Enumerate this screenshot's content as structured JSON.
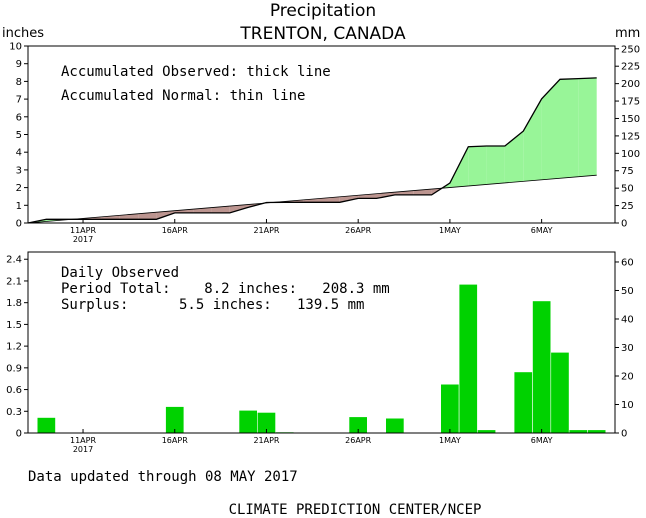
{
  "header": {
    "title": "Precipitation",
    "station": "TRENTON, CANADA",
    "unit_left": "inches",
    "unit_right": "mm"
  },
  "x_ticks": [
    {
      "label": "11APR",
      "sub": "2017",
      "day": 3
    },
    {
      "label": "16APR",
      "sub": "",
      "day": 8
    },
    {
      "label": "21APR",
      "sub": "",
      "day": 13
    },
    {
      "label": "26APR",
      "sub": "",
      "day": 18
    },
    {
      "label": "1MAY",
      "sub": "",
      "day": 23
    },
    {
      "label": "6MAY",
      "sub": "",
      "day": 28
    }
  ],
  "top_panel": {
    "legend_observed": "Accumulated Observed: thick line",
    "legend_normal": "Accumulated Normal: thin line",
    "left_ticks": [
      "0",
      "1",
      "2",
      "3",
      "4",
      "5",
      "6",
      "7",
      "8",
      "9",
      "10"
    ],
    "right_ticks": [
      "0",
      "25",
      "50",
      "75",
      "100",
      "125",
      "150",
      "175",
      "200",
      "225",
      "250"
    ]
  },
  "bottom_panel": {
    "title": "Daily Observed",
    "period_line": "Period Total:    8.2 inches:   208.3 mm",
    "surplus_line": "Surplus:      5.5 inches:   139.5 mm",
    "left_ticks": [
      "0",
      "0.3",
      "0.6",
      "0.9",
      "1.2",
      "1.5",
      "1.8",
      "2.1",
      "2.4"
    ],
    "right_ticks": [
      "0",
      "10",
      "20",
      "30",
      "40",
      "50",
      "60"
    ]
  },
  "footer": {
    "updated": "Data updated through 08 MAY 2017",
    "credit": "CLIMATE PREDICTION CENTER/NCEP"
  },
  "colors": {
    "surplus_fill": "#98f598",
    "deficit_fill": "#bc9590",
    "bar_fill": "#00d200",
    "axis": "#000000"
  },
  "chart_data": [
    {
      "type": "area",
      "title": "Precipitation",
      "ylabel": "inches",
      "ylabel_right": "mm",
      "ylim": [
        0,
        10
      ],
      "ylim_right": [
        0,
        254
      ],
      "xlim_days": [
        0,
        32
      ],
      "x_start_date": "2017-04-08",
      "series": [
        {
          "name": "Accumulated Observed",
          "x": [
            0,
            1,
            2,
            3,
            4,
            5,
            6,
            7,
            8,
            9,
            10,
            11,
            12,
            13,
            14,
            15,
            16,
            17,
            18,
            19,
            20,
            21,
            22,
            23,
            24,
            25,
            26,
            27,
            28,
            29,
            30,
            31
          ],
          "values": [
            0,
            0.21,
            0.21,
            0.21,
            0.21,
            0.21,
            0.21,
            0.21,
            0.57,
            0.57,
            0.57,
            0.57,
            0.88,
            1.16,
            1.17,
            1.17,
            1.17,
            1.17,
            1.39,
            1.39,
            1.59,
            1.59,
            1.59,
            2.26,
            4.31,
            4.35,
            4.35,
            5.19,
            7.01,
            8.12,
            8.16,
            8.2
          ]
        },
        {
          "name": "Accumulated Normal",
          "x": [
            0,
            31
          ],
          "values": [
            0,
            2.7
          ]
        }
      ]
    },
    {
      "type": "bar",
      "title": "Daily Observed",
      "ylabel": "inches",
      "ylabel_right": "mm",
      "ylim": [
        0,
        2.5
      ],
      "ylim_right": [
        0,
        63.5
      ],
      "x_start_date": "2017-04-08",
      "categories": [
        0,
        1,
        2,
        3,
        4,
        5,
        6,
        7,
        8,
        9,
        10,
        11,
        12,
        13,
        14,
        15,
        16,
        17,
        18,
        19,
        20,
        21,
        22,
        23,
        24,
        25,
        26,
        27,
        28,
        29,
        30,
        31
      ],
      "values": [
        0,
        0.21,
        0,
        0,
        0,
        0,
        0,
        0,
        0.36,
        0,
        0,
        0,
        0.31,
        0.28,
        0.01,
        0,
        0,
        0,
        0.22,
        0,
        0.2,
        0,
        0,
        0.67,
        2.05,
        0.04,
        0,
        0.84,
        1.82,
        1.11,
        0.04,
        0.04
      ]
    }
  ]
}
